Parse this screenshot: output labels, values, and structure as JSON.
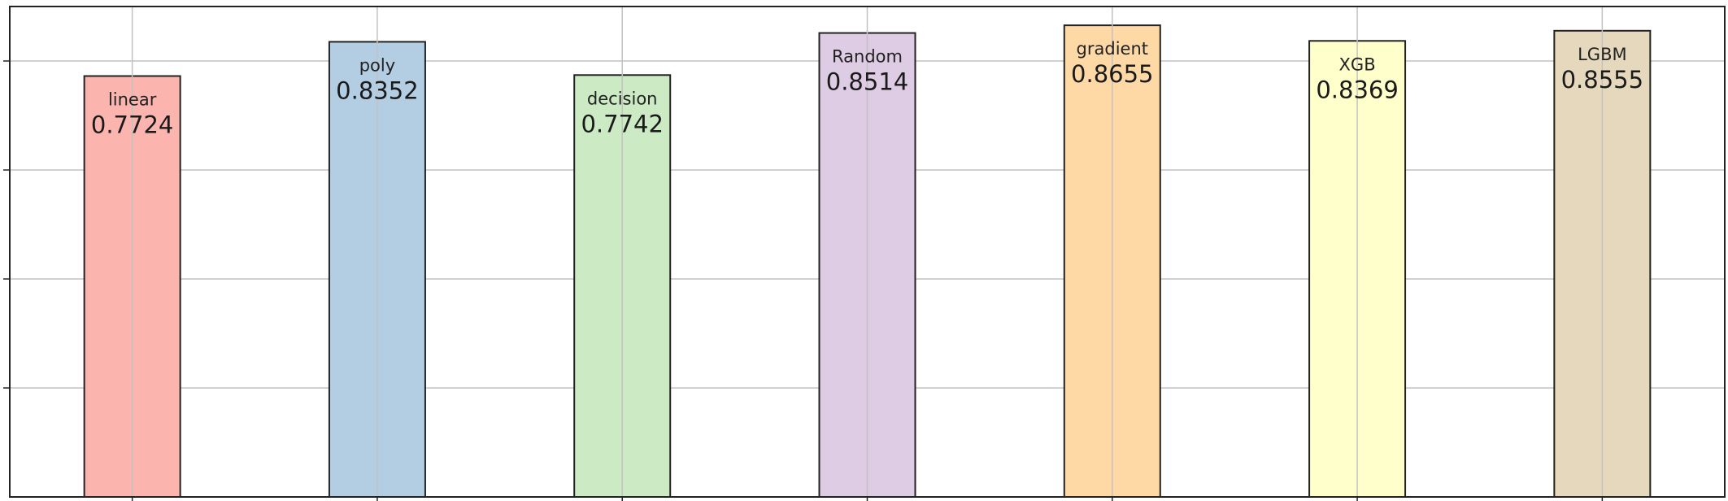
{
  "chart_data": {
    "type": "bar",
    "categories": [
      "linear",
      "poly",
      "decision",
      "Random",
      "gradient",
      "XGB",
      "LGBM"
    ],
    "values": [
      0.7724,
      0.8352,
      0.7742,
      0.8514,
      0.8655,
      0.8369,
      0.8555
    ],
    "value_labels": [
      "0.7724",
      "0.8352",
      "0.7742",
      "0.8514",
      "0.8655",
      "0.8369",
      "0.8555"
    ],
    "colors": [
      "#fbb4ae",
      "#b3cde3",
      "#ccebc5",
      "#decbe4",
      "#fed9a6",
      "#ffffcc",
      "#e5d8bd"
    ],
    "title": "",
    "xlabel": "",
    "ylabel": "",
    "ylim": [
      0,
      0.9
    ],
    "y_gridlines": [
      0.2,
      0.4,
      0.6,
      0.8
    ],
    "grid": true,
    "legend": "none",
    "tick_labels_visible": false
  }
}
